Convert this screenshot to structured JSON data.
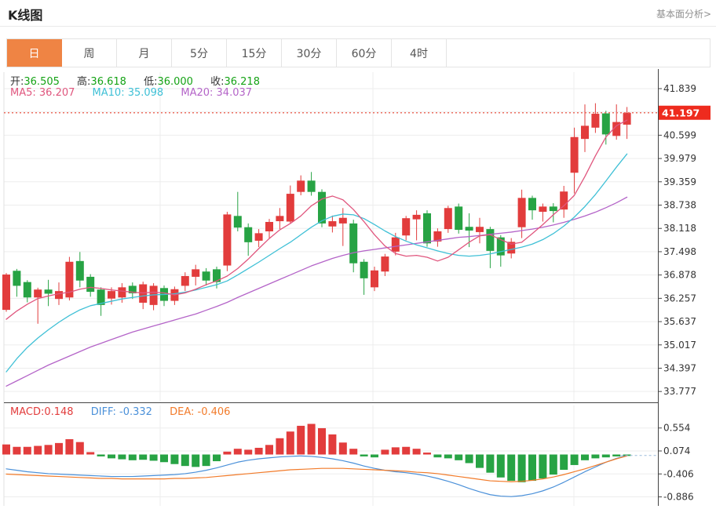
{
  "header": {
    "title": "K线图",
    "link": "基本面分析>"
  },
  "tabs": [
    {
      "label": "日",
      "active": true
    },
    {
      "label": "周",
      "active": false
    },
    {
      "label": "月",
      "active": false
    },
    {
      "label": "5分",
      "active": false
    },
    {
      "label": "15分",
      "active": false
    },
    {
      "label": "30分",
      "active": false
    },
    {
      "label": "60分",
      "active": false
    },
    {
      "label": "4时",
      "active": false
    }
  ],
  "legend": {
    "ohlc": [
      {
        "label": "开:",
        "value": "36.505"
      },
      {
        "label": "高:",
        "value": "36.618"
      },
      {
        "label": "低:",
        "value": "36.000"
      },
      {
        "label": "收:",
        "value": "36.218"
      }
    ],
    "ma": [
      {
        "label": "MA5:",
        "value": "36.207"
      },
      {
        "label": "MA10:",
        "value": "35.098"
      },
      {
        "label": "MA20:",
        "value": "34.037"
      }
    ],
    "macd": [
      {
        "label": "MACD:",
        "value": "0.148"
      },
      {
        "label": "DIFF:",
        "value": "-0.332"
      },
      {
        "label": "DEA:",
        "value": "-0.406"
      }
    ]
  },
  "price_tag": "41.197",
  "colors": {
    "accent": "#ef8444",
    "red": "#e23c3c",
    "green": "#27a344",
    "ma5": "#e0567e",
    "ma10": "#3fc0d6",
    "ma20": "#b464c8",
    "diff": "#4a90d9",
    "dea": "#f27b2a",
    "tag": "#ee2b1e",
    "dotted": "#ec6f61",
    "grid": "#ededed",
    "axis": "#555555",
    "text": "#333333",
    "up_text": "#15a315",
    "muted": "#909090",
    "border": "#e4e4e4"
  },
  "chart_data": {
    "type": "candlestick",
    "title": "K线图 (daily K-line with MA5/MA10/MA20 and MACD)",
    "legend_position": "top-left",
    "grid": true,
    "current_price": 41.197,
    "price_axis": {
      "ticks": [
        {
          "label": "41.839",
          "price": 41.839
        },
        {
          "label": "40.599",
          "price": 40.599
        },
        {
          "label": "39.979",
          "price": 39.979
        },
        {
          "label": "39.359",
          "price": 39.359
        },
        {
          "label": "38.738",
          "price": 38.738
        },
        {
          "label": "38.118",
          "price": 38.118
        },
        {
          "label": "37.498",
          "price": 37.498
        },
        {
          "label": "36.878",
          "price": 36.878
        },
        {
          "label": "36.257",
          "price": 36.257
        },
        {
          "label": "35.637",
          "price": 35.637
        },
        {
          "label": "35.017",
          "price": 35.017
        },
        {
          "label": "34.397",
          "price": 34.397
        },
        {
          "label": "33.777",
          "price": 33.777
        }
      ],
      "grid_prices": [
        41.839,
        41.219,
        40.599,
        39.979,
        39.359,
        38.738,
        38.118,
        37.498,
        36.878,
        36.257,
        35.637,
        35.017,
        34.397,
        33.777
      ]
    },
    "candles_ohlc_format": "[open, close, low, high]",
    "candles": [
      [
        35.95,
        36.89,
        35.9,
        36.93
      ],
      [
        36.99,
        36.59,
        36.3,
        37.04
      ],
      [
        36.69,
        36.28,
        36.15,
        36.74
      ],
      [
        36.28,
        36.49,
        35.58,
        36.54
      ],
      [
        36.49,
        36.38,
        36.05,
        36.75
      ],
      [
        36.24,
        36.45,
        36.08,
        36.68
      ],
      [
        36.28,
        37.23,
        36.2,
        37.36
      ],
      [
        37.25,
        36.73,
        36.55,
        37.49
      ],
      [
        36.83,
        36.43,
        36.3,
        36.9
      ],
      [
        36.49,
        36.08,
        35.79,
        36.55
      ],
      [
        36.25,
        36.45,
        36.09,
        36.55
      ],
      [
        36.28,
        36.55,
        36.14,
        36.66
      ],
      [
        36.59,
        36.39,
        36.24,
        36.68
      ],
      [
        36.14,
        36.63,
        35.97,
        36.7
      ],
      [
        36.08,
        36.59,
        35.94,
        36.66
      ],
      [
        36.53,
        36.19,
        36.05,
        36.6
      ],
      [
        36.19,
        36.5,
        36.08,
        36.57
      ],
      [
        36.59,
        36.85,
        36.45,
        36.95
      ],
      [
        36.83,
        37.03,
        36.6,
        37.15
      ],
      [
        36.97,
        36.73,
        36.6,
        37.06
      ],
      [
        37.03,
        36.69,
        36.52,
        37.1
      ],
      [
        37.13,
        38.49,
        36.98,
        38.56
      ],
      [
        38.45,
        38.14,
        38.04,
        39.09
      ],
      [
        38.15,
        37.75,
        37.39,
        38.25
      ],
      [
        37.79,
        37.99,
        37.62,
        38.1
      ],
      [
        38.04,
        38.29,
        37.86,
        38.37
      ],
      [
        38.31,
        38.45,
        38.1,
        38.66
      ],
      [
        38.3,
        39.04,
        38.25,
        39.26
      ],
      [
        39.09,
        39.39,
        39.0,
        39.53
      ],
      [
        39.39,
        39.09,
        38.99,
        39.62
      ],
      [
        39.09,
        38.25,
        38.15,
        39.16
      ],
      [
        38.17,
        38.31,
        38.01,
        38.46
      ],
      [
        38.25,
        38.4,
        37.65,
        38.66
      ],
      [
        38.25,
        37.19,
        36.95,
        38.35
      ],
      [
        37.23,
        36.79,
        36.35,
        37.3
      ],
      [
        36.55,
        37.0,
        36.45,
        37.1
      ],
      [
        36.97,
        37.37,
        36.85,
        37.44
      ],
      [
        37.5,
        37.88,
        37.4,
        38.0
      ],
      [
        37.93,
        38.39,
        37.8,
        38.45
      ],
      [
        38.36,
        38.48,
        37.8,
        38.6
      ],
      [
        38.52,
        37.72,
        37.63,
        38.6
      ],
      [
        37.77,
        38.04,
        37.63,
        38.12
      ],
      [
        38.1,
        38.66,
        38.0,
        38.72
      ],
      [
        38.7,
        38.08,
        37.98,
        38.78
      ],
      [
        38.16,
        38.06,
        37.62,
        38.52
      ],
      [
        38.02,
        38.16,
        37.72,
        38.4
      ],
      [
        38.1,
        37.52,
        37.06,
        38.16
      ],
      [
        37.88,
        37.4,
        37.1,
        37.94
      ],
      [
        37.45,
        37.76,
        37.32,
        37.86
      ],
      [
        38.15,
        38.93,
        37.86,
        39.15
      ],
      [
        38.93,
        38.6,
        38.35,
        38.99
      ],
      [
        38.56,
        38.7,
        38.3,
        38.78
      ],
      [
        38.7,
        38.58,
        38.28,
        38.79
      ],
      [
        38.62,
        39.1,
        38.4,
        39.25
      ],
      [
        39.6,
        40.55,
        39.05,
        40.8
      ],
      [
        40.5,
        40.85,
        40.15,
        41.42
      ],
      [
        40.8,
        41.17,
        40.66,
        41.45
      ],
      [
        41.18,
        40.62,
        40.35,
        41.25
      ],
      [
        40.58,
        40.95,
        40.48,
        41.42
      ],
      [
        40.88,
        41.197,
        40.5,
        41.35
      ]
    ],
    "ma5": [
      35.7,
      35.92,
      36.1,
      36.25,
      36.32,
      36.38,
      36.42,
      36.5,
      36.55,
      36.52,
      36.48,
      36.45,
      36.42,
      36.4,
      36.42,
      36.4,
      36.35,
      36.4,
      36.5,
      36.62,
      36.72,
      36.85,
      37.05,
      37.3,
      37.58,
      37.85,
      38.08,
      38.25,
      38.45,
      38.72,
      38.9,
      38.98,
      38.88,
      38.62,
      38.3,
      37.95,
      37.65,
      37.45,
      37.38,
      37.4,
      37.35,
      37.25,
      37.35,
      37.55,
      37.75,
      37.92,
      37.95,
      37.82,
      37.7,
      37.75,
      37.98,
      38.22,
      38.48,
      38.72,
      39.0,
      39.5,
      40.05,
      40.55,
      40.85,
      41.0
    ],
    "ma10": [
      34.3,
      34.65,
      34.95,
      35.2,
      35.42,
      35.62,
      35.8,
      35.95,
      36.06,
      36.12,
      36.18,
      36.24,
      36.28,
      36.32,
      36.35,
      36.36,
      36.38,
      36.42,
      36.48,
      36.55,
      36.62,
      36.72,
      36.88,
      37.05,
      37.22,
      37.4,
      37.58,
      37.75,
      37.95,
      38.15,
      38.32,
      38.44,
      38.5,
      38.48,
      38.38,
      38.22,
      38.05,
      37.9,
      37.78,
      37.68,
      37.6,
      37.52,
      37.45,
      37.4,
      37.38,
      37.4,
      37.44,
      37.5,
      37.56,
      37.62,
      37.7,
      37.82,
      37.98,
      38.18,
      38.42,
      38.7,
      39.02,
      39.38,
      39.75,
      40.1
    ],
    "ma20": [
      33.92,
      34.06,
      34.2,
      34.34,
      34.48,
      34.6,
      34.72,
      34.84,
      34.96,
      35.06,
      35.16,
      35.26,
      35.36,
      35.44,
      35.52,
      35.6,
      35.68,
      35.76,
      35.84,
      35.94,
      36.04,
      36.15,
      36.28,
      36.4,
      36.52,
      36.64,
      36.76,
      36.88,
      37.0,
      37.12,
      37.22,
      37.32,
      37.4,
      37.47,
      37.52,
      37.56,
      37.6,
      37.64,
      37.68,
      37.72,
      37.76,
      37.8,
      37.84,
      37.88,
      37.9,
      37.93,
      37.96,
      37.99,
      38.02,
      38.06,
      38.1,
      38.15,
      38.21,
      38.28,
      38.36,
      38.45,
      38.55,
      38.67,
      38.8,
      38.95
    ],
    "macd": {
      "ticks": [
        {
          "label": "0.554",
          "value": 0.554
        },
        {
          "label": "0.074",
          "value": 0.074
        },
        {
          "label": "-0.406",
          "value": -0.406
        },
        {
          "label": "-0.886",
          "value": -0.886
        }
      ],
      "bars": [
        0.21,
        0.16,
        0.16,
        0.18,
        0.2,
        0.24,
        0.32,
        0.26,
        0.05,
        -0.04,
        -0.08,
        -0.1,
        -0.12,
        -0.11,
        -0.13,
        -0.16,
        -0.2,
        -0.24,
        -0.26,
        -0.24,
        -0.14,
        0.06,
        0.12,
        0.1,
        0.14,
        0.2,
        0.34,
        0.48,
        0.6,
        0.64,
        0.55,
        0.42,
        0.25,
        0.12,
        -0.04,
        -0.06,
        0.1,
        0.15,
        0.16,
        0.12,
        0.04,
        -0.06,
        -0.08,
        -0.12,
        -0.18,
        -0.28,
        -0.38,
        -0.48,
        -0.55,
        -0.58,
        -0.55,
        -0.5,
        -0.42,
        -0.32,
        -0.22,
        -0.12,
        -0.08,
        -0.06,
        -0.04,
        -0.03
      ],
      "diff": [
        -0.3,
        -0.33,
        -0.36,
        -0.38,
        -0.4,
        -0.41,
        -0.42,
        -0.43,
        -0.44,
        -0.45,
        -0.46,
        -0.46,
        -0.46,
        -0.45,
        -0.44,
        -0.43,
        -0.42,
        -0.4,
        -0.37,
        -0.33,
        -0.28,
        -0.22,
        -0.16,
        -0.12,
        -0.09,
        -0.07,
        -0.05,
        -0.04,
        -0.03,
        -0.04,
        -0.06,
        -0.09,
        -0.13,
        -0.18,
        -0.24,
        -0.29,
        -0.33,
        -0.36,
        -0.38,
        -0.41,
        -0.45,
        -0.5,
        -0.56,
        -0.63,
        -0.71,
        -0.78,
        -0.84,
        -0.87,
        -0.88,
        -0.86,
        -0.82,
        -0.76,
        -0.68,
        -0.58,
        -0.47,
        -0.36,
        -0.26,
        -0.16,
        -0.08,
        -0.02
      ],
      "dea": [
        -0.41,
        -0.42,
        -0.43,
        -0.44,
        -0.45,
        -0.46,
        -0.47,
        -0.48,
        -0.49,
        -0.5,
        -0.5,
        -0.51,
        -0.51,
        -0.51,
        -0.51,
        -0.51,
        -0.5,
        -0.5,
        -0.49,
        -0.48,
        -0.46,
        -0.44,
        -0.42,
        -0.4,
        -0.38,
        -0.36,
        -0.34,
        -0.32,
        -0.31,
        -0.3,
        -0.29,
        -0.29,
        -0.29,
        -0.3,
        -0.31,
        -0.32,
        -0.33,
        -0.34,
        -0.35,
        -0.37,
        -0.38,
        -0.4,
        -0.43,
        -0.46,
        -0.49,
        -0.52,
        -0.55,
        -0.56,
        -0.57,
        -0.56,
        -0.54,
        -0.51,
        -0.47,
        -0.42,
        -0.36,
        -0.3,
        -0.23,
        -0.16,
        -0.09,
        -0.03
      ]
    }
  }
}
